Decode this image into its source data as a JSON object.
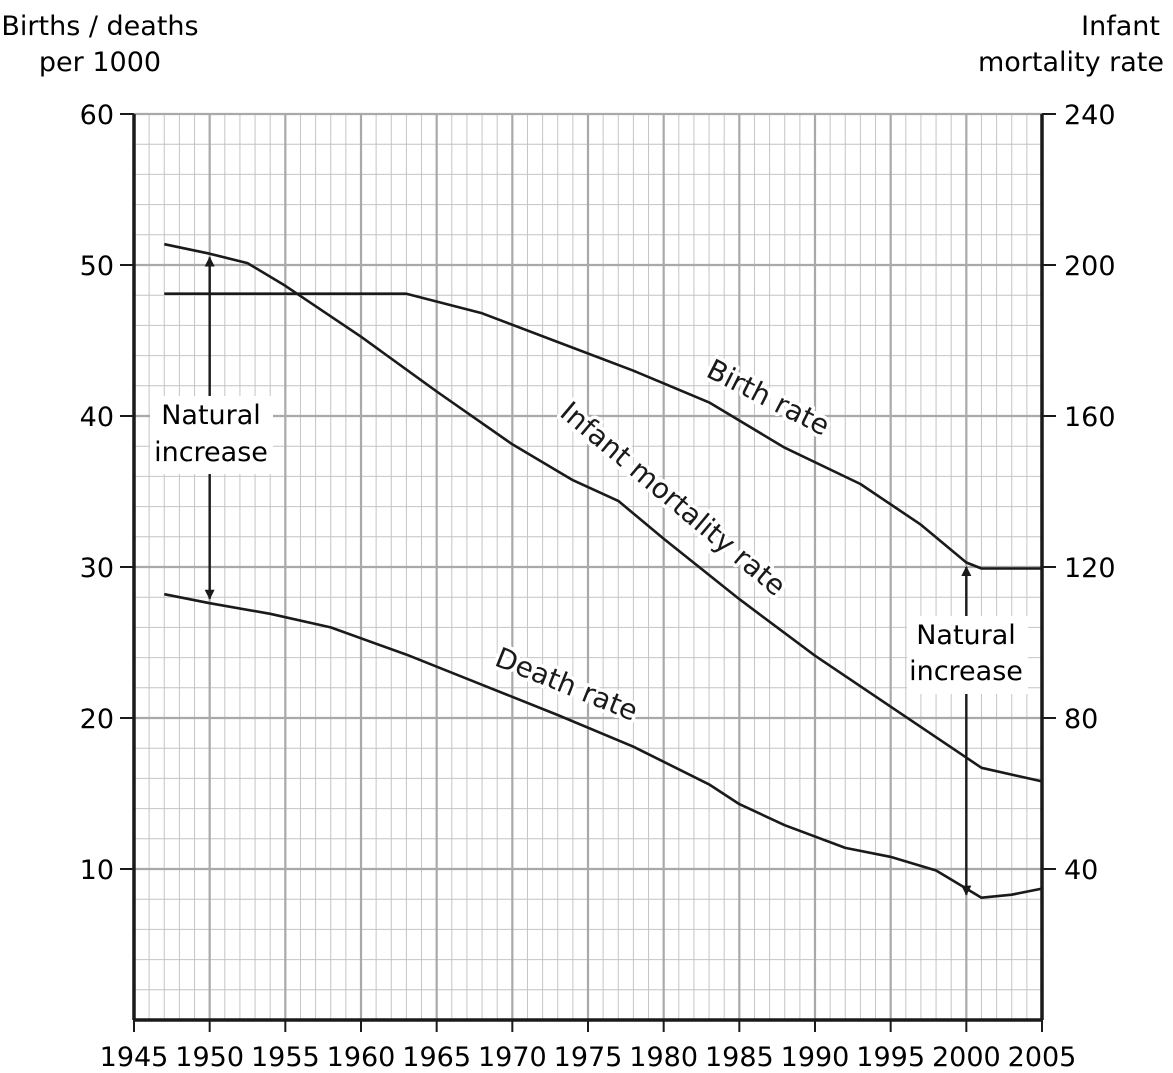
{
  "chart_data": {
    "type": "line",
    "left_axis": {
      "label_line1": "Births / deaths",
      "label_line2": "per 1000",
      "range": [
        0,
        60
      ],
      "ticks": [
        10,
        20,
        30,
        40,
        50,
        60
      ]
    },
    "right_axis": {
      "label_line1": "Infant",
      "label_line2": "mortality rate",
      "range": [
        0,
        240
      ],
      "ticks": [
        40,
        80,
        120,
        160,
        200,
        240
      ]
    },
    "x_axis": {
      "range": [
        1945,
        2005
      ],
      "ticks": [
        1945,
        1950,
        1955,
        1960,
        1965,
        1970,
        1975,
        1980,
        1985,
        1990,
        1995,
        2000,
        2005
      ]
    },
    "grid": true,
    "series": [
      {
        "name": "Birth rate",
        "axis": "left",
        "points": [
          [
            1947,
            48.1
          ],
          [
            1963,
            48.1
          ],
          [
            1968,
            46.8
          ],
          [
            1973,
            44.9
          ],
          [
            1978,
            43.0
          ],
          [
            1983,
            40.9
          ],
          [
            1988,
            37.9
          ],
          [
            1993,
            35.5
          ],
          [
            1997,
            32.8
          ],
          [
            2000,
            30.3
          ],
          [
            2001,
            29.9
          ],
          [
            2005,
            29.9
          ]
        ]
      },
      {
        "name": "Infant mortality rate",
        "axis": "right",
        "points": [
          [
            1947,
            205.5
          ],
          [
            1950,
            203.0
          ],
          [
            1952.5,
            200.5
          ],
          [
            1955,
            194.5
          ],
          [
            1960,
            181.0
          ],
          [
            1965,
            166.5
          ],
          [
            1970,
            152.5
          ],
          [
            1974,
            143.0
          ],
          [
            1977,
            137.5
          ],
          [
            1980,
            127.5
          ],
          [
            1985,
            111.5
          ],
          [
            1990,
            96.5
          ],
          [
            1995,
            83.0
          ],
          [
            2000,
            69.5
          ],
          [
            2001,
            66.8
          ],
          [
            2005,
            63.2
          ]
        ]
      },
      {
        "name": "Death rate",
        "axis": "left",
        "points": [
          [
            1947,
            28.2
          ],
          [
            1950,
            27.6
          ],
          [
            1954,
            26.9
          ],
          [
            1958,
            26.0
          ],
          [
            1963,
            24.2
          ],
          [
            1968,
            22.2
          ],
          [
            1973,
            20.2
          ],
          [
            1978,
            18.1
          ],
          [
            1983,
            15.6
          ],
          [
            1985,
            14.3
          ],
          [
            1988,
            12.9
          ],
          [
            1992,
            11.4
          ],
          [
            1995,
            10.8
          ],
          [
            1998,
            9.9
          ],
          [
            2001,
            8.1
          ],
          [
            2003,
            8.3
          ],
          [
            2005,
            8.7
          ]
        ]
      }
    ],
    "annotations": [
      {
        "line1": "Natural",
        "line2": "increase",
        "year": 1950,
        "from": 50.5,
        "to": 27.9
      },
      {
        "line1": "Natural",
        "line2": "increase",
        "year": 2000,
        "from": 30.0,
        "to": 8.3
      }
    ]
  }
}
